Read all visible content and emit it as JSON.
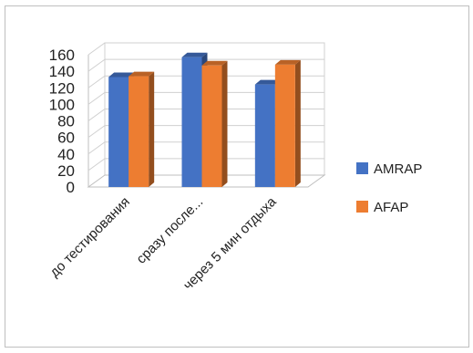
{
  "chart_data": {
    "type": "bar",
    "categories": [
      "до тестирования",
      "сразу после...",
      "через 5 мин отдыха"
    ],
    "series": [
      {
        "name": "AMRAP",
        "values": [
          133,
          157,
          124
        ],
        "color": "#4472C4"
      },
      {
        "name": "AFAP",
        "values": [
          134,
          147,
          148
        ],
        "color": "#ED7D31"
      }
    ],
    "yticks": [
      "0",
      "20",
      "40",
      "60",
      "80",
      "100",
      "120",
      "140",
      "160"
    ],
    "ylim": [
      0,
      160
    ],
    "grid": true,
    "legend": "right",
    "style": "3d-clustered-column",
    "title": "",
    "xlabel": "",
    "ylabel": ""
  }
}
